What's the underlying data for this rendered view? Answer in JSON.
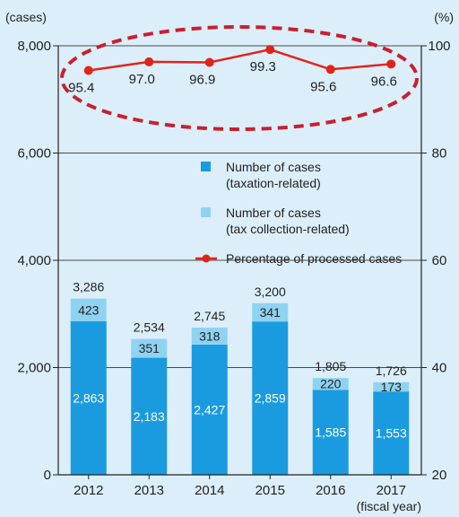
{
  "chart_data": {
    "type": "bar",
    "categories": [
      "2012",
      "2013",
      "2014",
      "2015",
      "2016",
      "2017"
    ],
    "series": [
      {
        "name": "Number of cases (taxation-related)",
        "type": "bar",
        "axis": "left",
        "color": "#1a9be0",
        "values": [
          2863,
          2183,
          2427,
          2859,
          1585,
          1553
        ]
      },
      {
        "name": "Number of cases (tax collection-related)",
        "type": "bar",
        "axis": "left",
        "color": "#8fd3f2",
        "values": [
          423,
          351,
          318,
          341,
          220,
          173
        ]
      },
      {
        "name": "Percentage of processed cases",
        "type": "line",
        "axis": "right",
        "color": "#e2231a",
        "values": [
          95.4,
          97.0,
          96.9,
          99.3,
          95.6,
          96.6
        ]
      }
    ],
    "totals": [
      3286,
      2534,
      2745,
      3200,
      1805,
      1726
    ],
    "stacked": true,
    "left_axis": {
      "unit": "(cases)",
      "ylim": [
        0,
        8000
      ],
      "ticks": [
        "0",
        "2,000",
        "4,000",
        "6,000",
        "8,000"
      ]
    },
    "right_axis": {
      "unit": "(%)",
      "ylim": [
        20,
        100
      ],
      "ticks": [
        "20",
        "40",
        "60",
        "80",
        "100"
      ]
    },
    "xlabel": "(fiscal year)",
    "grid": true,
    "legend_position": "center-right"
  },
  "labels": {
    "bar_values": [
      [
        "2,863",
        "2,183",
        "2,427",
        "2,859",
        "1,585",
        "1,553"
      ],
      [
        "423",
        "351",
        "318",
        "341",
        "220",
        "173"
      ]
    ],
    "totals": [
      "3,286",
      "2,534",
      "2,745",
      "3,200",
      "1,805",
      "1,726"
    ],
    "line_values": [
      "95.4",
      "97.0",
      "96.9",
      "99.3",
      "95.6",
      "96.6"
    ]
  },
  "legend": [
    {
      "lines": [
        "Number of cases",
        "(taxation-related)"
      ],
      "marker": "square",
      "color": "#1a9be0"
    },
    {
      "lines": [
        "Number of cases",
        "(tax collection-related)"
      ],
      "marker": "square",
      "color": "#8fd3f2"
    },
    {
      "lines": [
        "Percentage of processed cases"
      ],
      "marker": "line",
      "color": "#e2231a"
    }
  ],
  "colors": {
    "background": "#dbeef9",
    "grid": "#4a4a4a",
    "highlight_ellipse": "#c8202f",
    "bar_value_text_dark": "#ffffff"
  }
}
